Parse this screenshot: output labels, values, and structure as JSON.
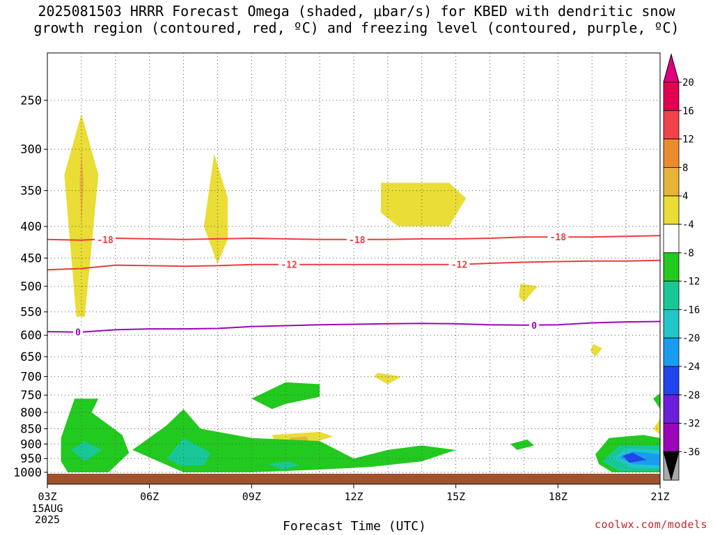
{
  "title": {
    "line1": "2025081503 HRRR Forecast Omega (shaded, μbar/s) for KBED with dendritic snow",
    "line2": "growth region (contoured, red, ºC) and freezing level (contoured, purple, ºC)"
  },
  "watermark": "coolwx.com/models",
  "chart_data": {
    "type": "time-height contour",
    "title": "2025081503 HRRR Forecast Omega (shaded, μbar/s) for KBED with dendritic snow growth region (contoured, red, ºC) and freezing level (contoured, purple, ºC)",
    "xlabel": "Forecast Time (UTC)",
    "ylabel": "",
    "x_ticks": [
      "03Z",
      "06Z",
      "09Z",
      "12Z",
      "15Z",
      "18Z",
      "21Z"
    ],
    "x_tick_hours": [
      3,
      6,
      9,
      12,
      15,
      18,
      21
    ],
    "x_first_date": [
      "15AUG",
      "2025"
    ],
    "xlim": [
      3,
      21
    ],
    "y_ticks": [
      250,
      300,
      350,
      400,
      450,
      500,
      550,
      600,
      650,
      700,
      750,
      800,
      850,
      900,
      950,
      1000
    ],
    "ylim": [
      1025,
      200
    ],
    "y_scale": "log-pressure",
    "grid": "dotted",
    "colorbar": {
      "levels": [
        "20",
        "16",
        "12",
        "8",
        "4",
        "-4",
        "-8",
        "-12",
        "-16",
        "-20",
        "-24",
        "-28",
        "-32",
        "-36"
      ],
      "colors": [
        "#e30053",
        "#f2424b",
        "#ec8a2f",
        "#e8b438",
        "#e9dd36",
        "#ffffff",
        "#22c91e",
        "#17c896",
        "#20c6c8",
        "#1a9df0",
        "#2244ee",
        "#6b1fd8",
        "#9a06b8",
        "#a8a8a8"
      ],
      "top_color": "#e0007f",
      "bottom_color": "#000000"
    },
    "contours": [
      {
        "name": "-18",
        "color": "#ee3b3b",
        "points": [
          [
            3,
            420
          ],
          [
            4,
            421
          ],
          [
            5,
            418
          ],
          [
            6,
            419
          ],
          [
            7,
            420
          ],
          [
            8,
            419
          ],
          [
            9,
            418
          ],
          [
            10,
            419
          ],
          [
            11,
            420
          ],
          [
            12,
            420
          ],
          [
            13,
            420
          ],
          [
            14,
            419
          ],
          [
            15,
            419
          ],
          [
            16,
            418
          ],
          [
            17,
            416
          ],
          [
            18,
            416
          ],
          [
            19,
            416
          ],
          [
            20,
            415
          ],
          [
            21,
            414
          ]
        ],
        "labels": [
          [
            4.7,
            420
          ],
          [
            12.1,
            420
          ],
          [
            18,
            416
          ]
        ]
      },
      {
        "name": "-12",
        "color": "#ee3b3b",
        "points": [
          [
            3,
            470
          ],
          [
            4,
            468
          ],
          [
            5,
            462
          ],
          [
            6,
            463
          ],
          [
            7,
            464
          ],
          [
            8,
            463
          ],
          [
            9,
            461
          ],
          [
            10,
            461
          ],
          [
            11,
            461
          ],
          [
            12,
            461
          ],
          [
            13,
            461
          ],
          [
            14,
            461
          ],
          [
            15,
            461
          ],
          [
            16,
            459
          ],
          [
            17,
            457
          ],
          [
            18,
            456
          ],
          [
            19,
            455
          ],
          [
            20,
            455
          ],
          [
            21,
            454
          ]
        ],
        "labels": [
          [
            10.1,
            461
          ],
          [
            15.1,
            461
          ]
        ]
      },
      {
        "name": "0",
        "color": "#9a06b8",
        "points": [
          [
            3,
            592
          ],
          [
            4,
            593
          ],
          [
            5,
            588
          ],
          [
            6,
            586
          ],
          [
            7,
            586
          ],
          [
            8,
            585
          ],
          [
            9,
            581
          ],
          [
            10,
            579
          ],
          [
            11,
            577
          ],
          [
            12,
            576
          ],
          [
            13,
            575
          ],
          [
            14,
            574
          ],
          [
            15,
            575
          ],
          [
            16,
            577
          ],
          [
            17,
            578
          ],
          [
            18,
            577
          ],
          [
            19,
            573
          ],
          [
            20,
            571
          ],
          [
            21,
            570
          ]
        ],
        "labels": [
          [
            3.9,
            593
          ],
          [
            17.3,
            578
          ]
        ]
      }
    ],
    "regions": [
      {
        "value_range": [
          4,
          8
        ],
        "color": "#e9dd36",
        "points": [
          [
            3.85,
            560
          ],
          [
            3.5,
            330
          ],
          [
            4,
            263
          ],
          [
            4.5,
            330
          ],
          [
            4.1,
            560
          ]
        ]
      },
      {
        "value_range": [
          8,
          12
        ],
        "color": "#e8b438",
        "points": [
          [
            4,
            400
          ],
          [
            3.95,
            340
          ],
          [
            4,
            300
          ],
          [
            4.07,
            340
          ]
        ]
      },
      {
        "value_range": [
          4,
          8
        ],
        "color": "#e9dd36",
        "points": [
          [
            8,
            460
          ],
          [
            7.6,
            400
          ],
          [
            7.9,
            305
          ],
          [
            8.3,
            360
          ],
          [
            8.3,
            420
          ]
        ]
      },
      {
        "value_range": [
          4,
          8
        ],
        "color": "#e9dd36",
        "points": [
          [
            12.8,
            380
          ],
          [
            12.8,
            340
          ],
          [
            14.8,
            340
          ],
          [
            15.3,
            360
          ],
          [
            14.8,
            400
          ],
          [
            13.3,
            400
          ]
        ]
      },
      {
        "value_range": [
          4,
          8
        ],
        "color": "#e9dd36",
        "points": [
          [
            16.9,
            495
          ],
          [
            17.4,
            500
          ],
          [
            17,
            530
          ],
          [
            16.85,
            520
          ]
        ]
      },
      {
        "value_range": [
          4,
          8
        ],
        "color": "#e9dd36",
        "points": [
          [
            19.05,
            620
          ],
          [
            19.3,
            630
          ],
          [
            19.1,
            650
          ],
          [
            18.95,
            635
          ]
        ]
      },
      {
        "value_range": [
          4,
          8
        ],
        "color": "#e9dd36",
        "points": [
          [
            12.7,
            690
          ],
          [
            13.4,
            700
          ],
          [
            13,
            720
          ],
          [
            12.6,
            700
          ]
        ]
      },
      {
        "value_range": [
          4,
          8
        ],
        "color": "#e9dd36",
        "points": [
          [
            9.6,
            870
          ],
          [
            11,
            860
          ],
          [
            11.4,
            875
          ],
          [
            10.5,
            905
          ],
          [
            9.7,
            900
          ]
        ]
      },
      {
        "value_range": [
          8,
          12
        ],
        "color": "#e8b438",
        "points": [
          [
            10.1,
            880
          ],
          [
            10.6,
            875
          ],
          [
            10.7,
            895
          ],
          [
            10.2,
            898
          ]
        ]
      },
      {
        "value_range": [
          4,
          8
        ],
        "color": "#e9dd36",
        "points": [
          [
            21,
            820
          ],
          [
            20.8,
            850
          ],
          [
            21,
            870
          ]
        ]
      },
      {
        "value_range": [
          -8,
          -4
        ],
        "color": "#22c91e",
        "points": [
          [
            3.4,
            880
          ],
          [
            3.8,
            760
          ],
          [
            4.5,
            760
          ],
          [
            4.3,
            800
          ],
          [
            5.2,
            870
          ],
          [
            5.4,
            930
          ],
          [
            4.8,
            1000
          ],
          [
            3.6,
            1000
          ],
          [
            3.4,
            960
          ]
        ]
      },
      {
        "value_range": [
          -12,
          -8
        ],
        "color": "#17c896",
        "points": [
          [
            3.7,
            920
          ],
          [
            4.1,
            890
          ],
          [
            4.6,
            920
          ],
          [
            4.1,
            960
          ]
        ]
      },
      {
        "value_range": [
          -8,
          -4
        ],
        "color": "#22c91e",
        "points": [
          [
            5.5,
            920
          ],
          [
            6.5,
            840
          ],
          [
            7,
            790
          ],
          [
            7.5,
            850
          ],
          [
            9,
            880
          ],
          [
            11,
            890
          ],
          [
            12,
            950
          ],
          [
            13,
            920
          ],
          [
            14,
            905
          ],
          [
            15,
            920
          ],
          [
            14,
            960
          ],
          [
            12.5,
            980
          ],
          [
            11,
            990
          ],
          [
            9,
            1000
          ],
          [
            7,
            1000
          ]
        ]
      },
      {
        "value_range": [
          -12,
          -8
        ],
        "color": "#17c896",
        "points": [
          [
            6.5,
            950
          ],
          [
            7,
            880
          ],
          [
            7.8,
            930
          ],
          [
            7.6,
            975
          ],
          [
            6.9,
            975
          ]
        ]
      },
      {
        "value_range": [
          -12,
          -8
        ],
        "color": "#17c896",
        "points": [
          [
            9.5,
            970
          ],
          [
            10.1,
            960
          ],
          [
            10.4,
            975
          ],
          [
            9.9,
            990
          ]
        ]
      },
      {
        "value_range": [
          -8,
          -4
        ],
        "color": "#22c91e",
        "points": [
          [
            9,
            760
          ],
          [
            10,
            715
          ],
          [
            11,
            720
          ],
          [
            11,
            755
          ],
          [
            10,
            775
          ],
          [
            9.6,
            790
          ]
        ]
      },
      {
        "value_range": [
          -8,
          -4
        ],
        "color": "#22c91e",
        "points": [
          [
            16.6,
            900
          ],
          [
            17.1,
            885
          ],
          [
            17.3,
            905
          ],
          [
            16.8,
            920
          ]
        ]
      },
      {
        "value_range": [
          -8,
          -4
        ],
        "color": "#22c91e",
        "points": [
          [
            19.1,
            935
          ],
          [
            19.5,
            880
          ],
          [
            20.5,
            870
          ],
          [
            21,
            880
          ],
          [
            21,
            1000
          ],
          [
            19.6,
            1000
          ],
          [
            19.2,
            970
          ]
        ]
      },
      {
        "value_range": [
          -12,
          -8
        ],
        "color": "#17c896",
        "points": [
          [
            19.3,
            960
          ],
          [
            19.8,
            905
          ],
          [
            21,
            905
          ],
          [
            21,
            995
          ],
          [
            19.8,
            995
          ]
        ]
      },
      {
        "value_range": [
          -16,
          -12
        ],
        "color": "#20c6c8",
        "points": [
          [
            19.6,
            950
          ],
          [
            20,
            915
          ],
          [
            21,
            920
          ],
          [
            21,
            985
          ],
          [
            20.2,
            985
          ]
        ]
      },
      {
        "value_range": [
          -20,
          -16
        ],
        "color": "#1a9df0",
        "points": [
          [
            19.8,
            945
          ],
          [
            20.2,
            925
          ],
          [
            21,
            935
          ],
          [
            21,
            975
          ],
          [
            20.2,
            970
          ]
        ]
      },
      {
        "value_range": [
          -24,
          -20
        ],
        "color": "#2244ee",
        "points": [
          [
            19.9,
            940
          ],
          [
            20.2,
            930
          ],
          [
            20.6,
            955
          ],
          [
            20.1,
            965
          ]
        ]
      },
      {
        "value_range": [
          -8,
          -4
        ],
        "color": "#22c91e",
        "points": [
          [
            20.8,
            760
          ],
          [
            21,
            745
          ],
          [
            21,
            790
          ]
        ]
      }
    ],
    "surface": {
      "color": "#a0522d"
    }
  }
}
